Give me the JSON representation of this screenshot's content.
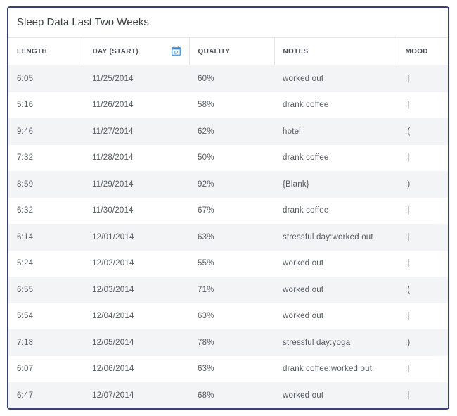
{
  "title": "Sleep Data Last Two Weeks",
  "columns": {
    "length": "LENGTH",
    "day": "DAY (START)",
    "quality": "QUALITY",
    "notes": "NOTES",
    "mood": "MOOD"
  },
  "icons": {
    "calendar": "calendar-icon",
    "calendar_color": "#3a8fd9"
  },
  "rows": [
    {
      "length": "6:05",
      "day": "11/25/2014",
      "quality": "60%",
      "notes": "worked out",
      "mood": ":|"
    },
    {
      "length": "5:16",
      "day": "11/26/2014",
      "quality": "58%",
      "notes": "drank coffee",
      "mood": ":|"
    },
    {
      "length": "9:46",
      "day": "11/27/2014",
      "quality": "62%",
      "notes": "hotel",
      "mood": ":("
    },
    {
      "length": "7:32",
      "day": "11/28/2014",
      "quality": "50%",
      "notes": "drank coffee",
      "mood": ":|"
    },
    {
      "length": "8:59",
      "day": "11/29/2014",
      "quality": "92%",
      "notes": "{Blank}",
      "mood": ":)"
    },
    {
      "length": "6:32",
      "day": "11/30/2014",
      "quality": "67%",
      "notes": "drank coffee",
      "mood": ":|"
    },
    {
      "length": "6:14",
      "day": "12/01/2014",
      "quality": "63%",
      "notes": "stressful day:worked out",
      "mood": ":|"
    },
    {
      "length": "5:24",
      "day": "12/02/2014",
      "quality": "55%",
      "notes": "worked out",
      "mood": ":|"
    },
    {
      "length": "6:55",
      "day": "12/03/2014",
      "quality": "71%",
      "notes": "worked out",
      "mood": ":("
    },
    {
      "length": "5:54",
      "day": "12/04/2014",
      "quality": "63%",
      "notes": "worked out",
      "mood": ":|"
    },
    {
      "length": "7:18",
      "day": "12/05/2014",
      "quality": "78%",
      "notes": "stressful day:yoga",
      "mood": ":)"
    },
    {
      "length": "6:07",
      "day": "12/06/2014",
      "quality": "63%",
      "notes": "drank coffee:worked out",
      "mood": ":|"
    },
    {
      "length": "6:47",
      "day": "12/07/2014",
      "quality": "68%",
      "notes": "worked out",
      "mood": ":|"
    }
  ]
}
